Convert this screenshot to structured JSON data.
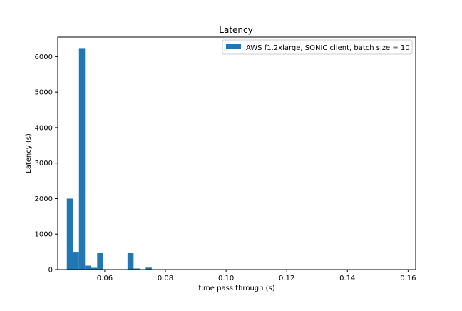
{
  "chart_data": {
    "type": "bar",
    "title": "Latency",
    "xlabel": "time pass through (s)",
    "ylabel": "Latency (s)",
    "xlim": [
      0.0445,
      0.1625
    ],
    "ylim": [
      0,
      6550
    ],
    "x_ticks": [
      {
        "value": 0.06,
        "label": "0.06"
      },
      {
        "value": 0.08,
        "label": "0.08"
      },
      {
        "value": 0.1,
        "label": "0.10"
      },
      {
        "value": 0.12,
        "label": "0.12"
      },
      {
        "value": 0.14,
        "label": "0.14"
      },
      {
        "value": 0.16,
        "label": "0.16"
      }
    ],
    "y_ticks": [
      {
        "value": 0,
        "label": "0"
      },
      {
        "value": 1000,
        "label": "1000"
      },
      {
        "value": 2000,
        "label": "2000"
      },
      {
        "value": 3000,
        "label": "3000"
      },
      {
        "value": 4000,
        "label": "4000"
      },
      {
        "value": 5000,
        "label": "5000"
      },
      {
        "value": 6000,
        "label": "6000"
      }
    ],
    "grid": false,
    "legend_position": "top-right",
    "series": [
      {
        "name": "AWS f1.2xlarge, SONIC client, batch size = 10",
        "color": "#1f77b4",
        "bin_width": 0.002,
        "bins": [
          {
            "x": 0.0475,
            "value": 2000
          },
          {
            "x": 0.0495,
            "value": 500
          },
          {
            "x": 0.0515,
            "value": 6240
          },
          {
            "x": 0.0535,
            "value": 110
          },
          {
            "x": 0.0555,
            "value": 50
          },
          {
            "x": 0.0575,
            "value": 475
          },
          {
            "x": 0.0595,
            "value": 0
          },
          {
            "x": 0.0615,
            "value": 0
          },
          {
            "x": 0.0635,
            "value": 0
          },
          {
            "x": 0.0655,
            "value": 0
          },
          {
            "x": 0.0675,
            "value": 480
          },
          {
            "x": 0.0695,
            "value": 30
          },
          {
            "x": 0.0715,
            "value": 0
          },
          {
            "x": 0.0735,
            "value": 55
          },
          {
            "x": 0.0755,
            "value": 5
          },
          {
            "x": 0.0775,
            "value": 2
          },
          {
            "x": 0.0795,
            "value": 1
          },
          {
            "x": 0.0815,
            "value": 1
          },
          {
            "x": 0.0835,
            "value": 1
          },
          {
            "x": 0.0855,
            "value": 1
          },
          {
            "x": 0.0875,
            "value": 1
          },
          {
            "x": 0.0895,
            "value": 1
          },
          {
            "x": 0.0915,
            "value": 1
          },
          {
            "x": 0.0935,
            "value": 1
          }
        ]
      }
    ]
  }
}
